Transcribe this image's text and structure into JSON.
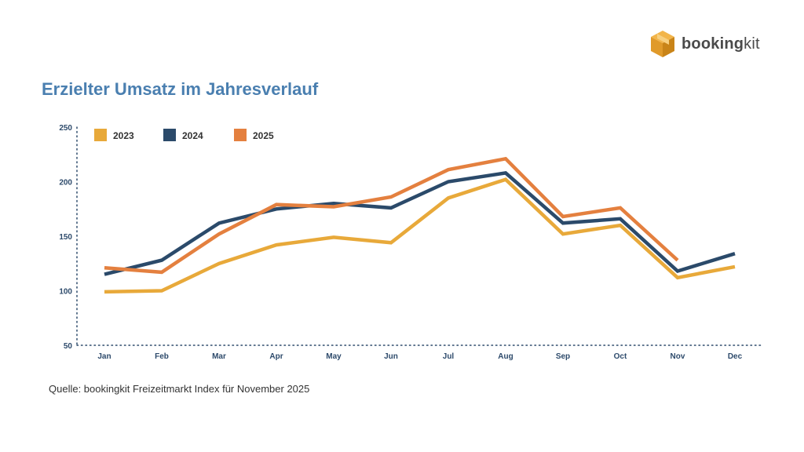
{
  "brand": {
    "name_bold": "booking",
    "name_light": "kit"
  },
  "source_note": "Quelle: bookingkit Freizeitmarkt Index für November 2025",
  "chart_data": {
    "type": "line",
    "title": "Erzielter Umsatz im Jahresverlauf",
    "xlabel": "",
    "ylabel": "",
    "categories": [
      "Jan",
      "Feb",
      "Mar",
      "Apr",
      "May",
      "Jun",
      "Jul",
      "Aug",
      "Sep",
      "Oct",
      "Nov",
      "Dec"
    ],
    "ylim": [
      50,
      250
    ],
    "yticks": [
      50,
      100,
      150,
      200,
      250
    ],
    "grid": false,
    "legend_position": "top-left",
    "series": [
      {
        "name": "2023",
        "color": "#e8a93a",
        "values": [
          99,
          100,
          125,
          142,
          149,
          144,
          185,
          202,
          152,
          160,
          112,
          122
        ]
      },
      {
        "name": "2024",
        "color": "#2b4a6a",
        "values": [
          115,
          128,
          162,
          175,
          180,
          176,
          200,
          208,
          162,
          166,
          118,
          134
        ]
      },
      {
        "name": "2025",
        "color": "#e4803f",
        "values": [
          121,
          117,
          152,
          179,
          177,
          186,
          211,
          221,
          168,
          176,
          128,
          null
        ]
      }
    ]
  }
}
